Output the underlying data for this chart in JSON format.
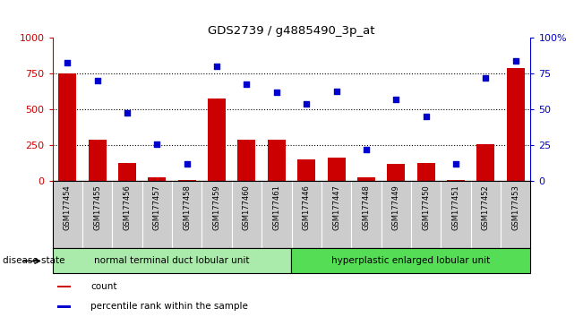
{
  "title": "GDS2739 / g4885490_3p_at",
  "samples": [
    "GSM177454",
    "GSM177455",
    "GSM177456",
    "GSM177457",
    "GSM177458",
    "GSM177459",
    "GSM177460",
    "GSM177461",
    "GSM177446",
    "GSM177447",
    "GSM177448",
    "GSM177449",
    "GSM177450",
    "GSM177451",
    "GSM177452",
    "GSM177453"
  ],
  "counts": [
    750,
    290,
    130,
    30,
    10,
    580,
    290,
    290,
    155,
    165,
    30,
    120,
    130,
    10,
    260,
    790
  ],
  "percentiles": [
    83,
    70,
    48,
    26,
    12,
    80,
    68,
    62,
    54,
    63,
    22,
    57,
    45,
    12,
    72,
    84
  ],
  "ylim_left": [
    0,
    1000
  ],
  "ylim_right": [
    0,
    100
  ],
  "yticks_left": [
    0,
    250,
    500,
    750,
    1000
  ],
  "yticks_right": [
    0,
    25,
    50,
    75,
    100
  ],
  "ytick_labels_left": [
    "0",
    "250",
    "500",
    "750",
    "1000"
  ],
  "ytick_labels_right": [
    "0",
    "25",
    "50",
    "75",
    "100%"
  ],
  "bar_color": "#cc0000",
  "dot_color": "#0000cc",
  "group1_label": "normal terminal duct lobular unit",
  "group2_label": "hyperplastic enlarged lobular unit",
  "group1_color": "#aaeaaa",
  "group2_color": "#55dd55",
  "group1_count": 8,
  "group2_count": 8,
  "disease_state_label": "disease state",
  "legend_count_label": "count",
  "legend_pct_label": "percentile rank within the sample",
  "dotted_line_values": [
    250,
    500,
    750
  ],
  "background_plot": "#ffffff",
  "tick_bg_color": "#cccccc",
  "right_ytick_labels": [
    "0",
    "25",
    "50",
    "75",
    "100%"
  ]
}
